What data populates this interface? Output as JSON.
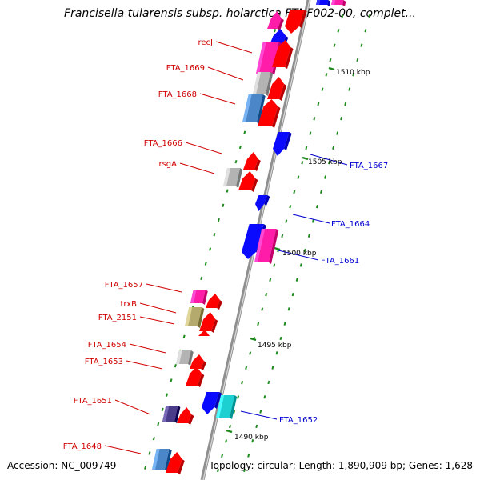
{
  "title": "Francisella tularensis subsp. holarctica FTNF002-00, complet...",
  "footer": {
    "accession": "Accession: NC_009749",
    "summary": "Topology: circular; Length: 1,890,909 bp; Genes: 1,628"
  },
  "colors": {
    "backbone": "#8f8f8f",
    "backbone_highlight": "#d8d8d8",
    "tick": "#1e8a1e",
    "left_label": "#d00000",
    "right_label": "#0000d0",
    "red": "#ff0000",
    "blue": "#0a0aff",
    "pink": "#ff1ca8",
    "gray": "#b3b3b3",
    "steel": "#4a86c8",
    "olive": "#b4aa6e",
    "cyan": "#1ccfd0",
    "purple": "#4b3c8a"
  },
  "kbp_labels": [
    "1510 kbp",
    "1505 kbp",
    "1500 kbp",
    "1495 kbp",
    "1490 kbp"
  ],
  "left_labels": [
    "recJ",
    "FTA_1669",
    "FTA_1668",
    "FTA_1666",
    "rsgA",
    "FTA_1657",
    "trxB",
    "FTA_2151",
    "FTA_1654",
    "FTA_1653",
    "FTA_1651",
    "FTA_1648"
  ],
  "right_labels": [
    "FTA_1667",
    "FTA_1664",
    "FTA_1661",
    "FTA_1652"
  ],
  "genes": [
    {
      "name": "recJ",
      "side": "left",
      "color": "pink"
    },
    {
      "name": "FTA_1669",
      "side": "left",
      "color": "gray"
    },
    {
      "name": "FTA_1668",
      "side": "left",
      "color": "steel"
    },
    {
      "name": "FTA_1666",
      "side": "left",
      "color": "red"
    },
    {
      "name": "rsgA",
      "side": "left",
      "color": "gray"
    },
    {
      "name": "FTA_1657",
      "side": "left",
      "color": "pink"
    },
    {
      "name": "trxB",
      "side": "left",
      "color": "red"
    },
    {
      "name": "FTA_2151",
      "side": "left",
      "color": "olive"
    },
    {
      "name": "FTA_1654",
      "side": "left",
      "color": "gray"
    },
    {
      "name": "FTA_1653",
      "side": "left",
      "color": "red"
    },
    {
      "name": "FTA_1651",
      "side": "left",
      "color": "purple"
    },
    {
      "name": "FTA_1648",
      "side": "left",
      "color": "steel"
    },
    {
      "name": "FTA_1667",
      "side": "right",
      "color": "blue"
    },
    {
      "name": "FTA_1664",
      "side": "right",
      "color": "blue"
    },
    {
      "name": "FTA_1661",
      "side": "right",
      "color": "pink"
    },
    {
      "name": "FTA_1652",
      "side": "right",
      "color": "cyan"
    }
  ]
}
